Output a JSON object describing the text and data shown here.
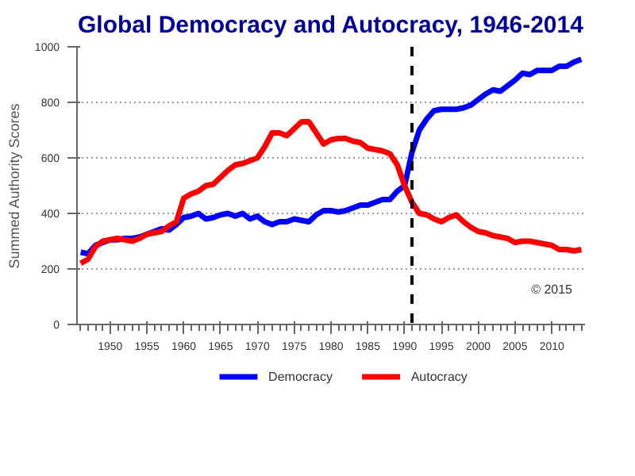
{
  "chart_data": {
    "type": "line",
    "title": "Global Democracy and Autocracy, 1946-2014",
    "ylabel": "Summed Authority Scores",
    "x": [
      1946,
      1947,
      1948,
      1949,
      1950,
      1951,
      1952,
      1953,
      1954,
      1955,
      1956,
      1957,
      1958,
      1959,
      1960,
      1961,
      1962,
      1963,
      1964,
      1965,
      1966,
      1967,
      1968,
      1969,
      1970,
      1971,
      1972,
      1973,
      1974,
      1975,
      1976,
      1977,
      1978,
      1979,
      1980,
      1981,
      1982,
      1983,
      1984,
      1985,
      1986,
      1987,
      1988,
      1989,
      1990,
      1991,
      1992,
      1993,
      1994,
      1995,
      1996,
      1997,
      1998,
      1999,
      2000,
      2001,
      2002,
      2003,
      2004,
      2005,
      2006,
      2007,
      2008,
      2009,
      2010,
      2011,
      2012,
      2013,
      2014
    ],
    "series": [
      {
        "name": "Democracy",
        "color": "#0000ff",
        "values": [
          260,
          255,
          285,
          295,
          305,
          305,
          310,
          310,
          315,
          325,
          335,
          345,
          340,
          360,
          385,
          390,
          400,
          380,
          385,
          395,
          400,
          390,
          400,
          380,
          390,
          370,
          360,
          370,
          370,
          380,
          375,
          370,
          395,
          410,
          410,
          405,
          410,
          420,
          430,
          430,
          440,
          450,
          450,
          480,
          500,
          620,
          700,
          740,
          770,
          775,
          775,
          775,
          780,
          790,
          810,
          830,
          845,
          840,
          860,
          880,
          905,
          900,
          915,
          915,
          915,
          930,
          930,
          945,
          955
        ]
      },
      {
        "name": "Autocracy",
        "color": "#ff0000",
        "values": [
          220,
          235,
          280,
          300,
          305,
          310,
          305,
          300,
          310,
          325,
          330,
          335,
          355,
          370,
          455,
          470,
          480,
          500,
          505,
          530,
          555,
          575,
          580,
          590,
          600,
          640,
          690,
          690,
          680,
          705,
          730,
          730,
          690,
          650,
          665,
          670,
          670,
          660,
          655,
          635,
          630,
          625,
          615,
          575,
          500,
          440,
          400,
          395,
          380,
          370,
          385,
          395,
          370,
          350,
          335,
          330,
          320,
          315,
          310,
          295,
          300,
          300,
          295,
          290,
          285,
          270,
          270,
          265,
          270
        ]
      }
    ],
    "xlim": [
      1945.5,
      2014.5
    ],
    "xticks": [
      1950,
      1955,
      1960,
      1965,
      1970,
      1975,
      1980,
      1985,
      1990,
      1995,
      2000,
      2005,
      2010
    ],
    "ylim": [
      0,
      1000
    ],
    "yticks": [
      0,
      200,
      400,
      600,
      800,
      1000
    ],
    "grid": "y",
    "legend": "bottom",
    "line_style": "solid",
    "marker": "none",
    "ref_lines": [
      {
        "axis": "x",
        "value": 1991,
        "color": "#000000",
        "line_style": "dashed"
      }
    ],
    "annotations": [
      "© 2015"
    ]
  }
}
